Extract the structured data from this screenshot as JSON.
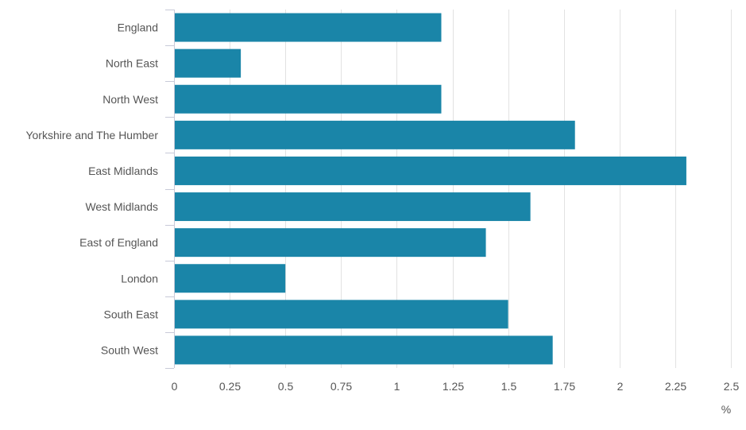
{
  "chart_data": {
    "type": "bar",
    "orientation": "horizontal",
    "categories": [
      "England",
      "North East",
      "North West",
      "Yorkshire and The Humber",
      "East Midlands",
      "West Midlands",
      "East of England",
      "London",
      "South East",
      "South West"
    ],
    "values": [
      1.2,
      0.3,
      1.2,
      1.8,
      2.3,
      1.6,
      1.4,
      0.5,
      1.5,
      1.7
    ],
    "xlim": [
      0,
      2.5
    ],
    "xticks": [
      "0",
      "0.25",
      "0.5",
      "0.75",
      "1",
      "1.25",
      "1.5",
      "1.75",
      "2",
      "2.25",
      "2.5"
    ],
    "xlabel": "%",
    "grid": true,
    "bar_color": "#1a85a8"
  }
}
